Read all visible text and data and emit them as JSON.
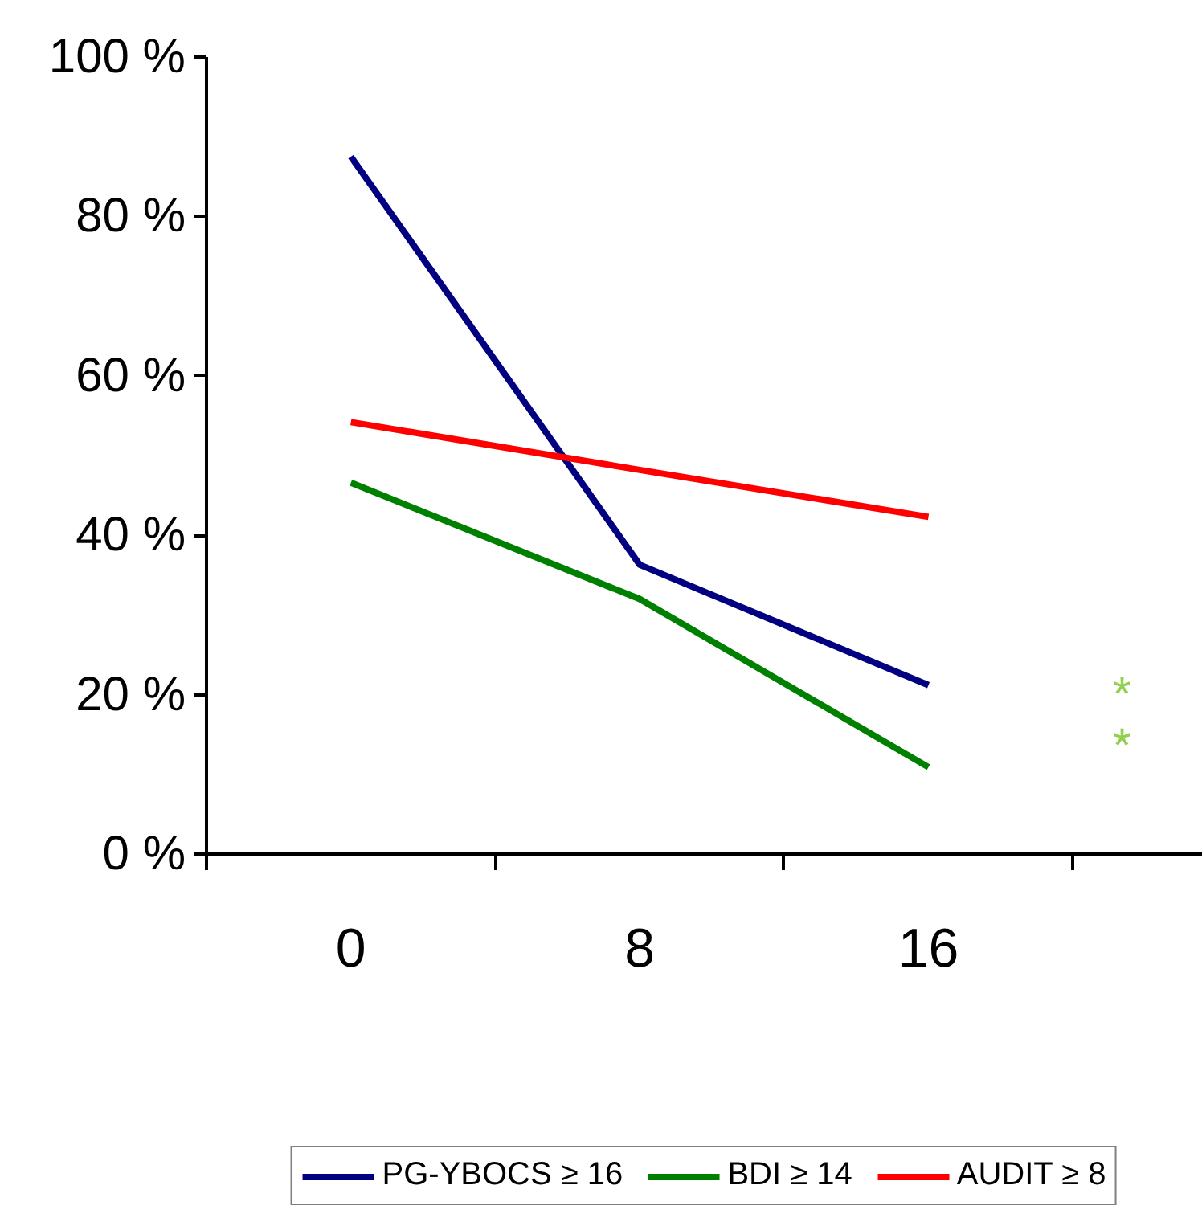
{
  "chart_data": {
    "type": "line",
    "categories": [
      "0",
      "8",
      "16"
    ],
    "series": [
      {
        "name": "PG-YBOCS ≥ 16",
        "color": "#000080",
        "values": [
          87.5,
          36.3,
          21.2
        ]
      },
      {
        "name": "BDI ≥ 14",
        "color": "#008000",
        "values": [
          46.6,
          32,
          10.9
        ]
      },
      {
        "name": "AUDIT ≥ 8",
        "color": "#ff0000",
        "values": [
          54.2,
          48.2,
          42.3
        ]
      }
    ],
    "ylim": [
      0,
      100
    ],
    "yticks": [
      {
        "value": 0,
        "label": "0 %"
      },
      {
        "value": 20,
        "label": "20 %"
      },
      {
        "value": 40,
        "label": "40 %"
      },
      {
        "value": 60,
        "label": "60 %"
      },
      {
        "value": 80,
        "label": "80 %"
      },
      {
        "value": 100,
        "label": "100 %"
      }
    ],
    "annotations": [
      "*",
      "*"
    ],
    "grid": false,
    "legend": "bottom",
    "marker": "none",
    "line_style": "solid"
  }
}
